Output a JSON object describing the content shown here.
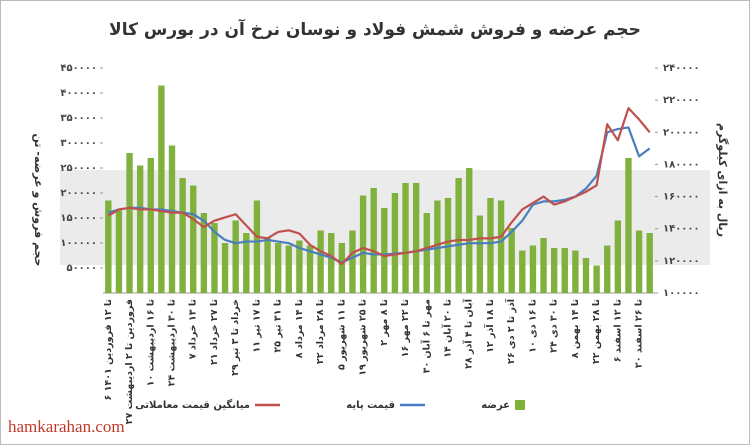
{
  "chart_data": {
    "type": "bar-line",
    "title": "حجم عرضه و فروش شمش فولاد و نوسان نرخ آن در بورس کالا",
    "y_label": "حجم فروش و عرضه- تن",
    "y2_label": "ریال به ازای کیلوگرم",
    "watermark": "hamkarahan.com",
    "categories": [
      "۶ تا ۱۲ فروردین ۱۴۰۱",
      null,
      "۲۷ فروردین تا ۲ اردیبهشت",
      null,
      "۱۰ تا ۱۶ اردیبهشت",
      null,
      "۲۴ تا ۳۰ اردیبهشت",
      null,
      "۷ تا ۱۳ خرداد",
      null,
      "۲۱ تا ۲۷ خرداد",
      null,
      "۲۹ خرداد تا ۳ تیر",
      null,
      "۱۱ تا ۱۷ تیر",
      null,
      "۲۵ تا ۳۱ تیر",
      null,
      "۸ تا ۱۴ مرداد",
      null,
      "۲۲ تا ۲۸ مرداد",
      null,
      "۵ تا ۱۱ شهریور",
      null,
      "۱۹ تا ۲۵ شهریور",
      null,
      "۲ تا ۸ مهر",
      null,
      "۱۶ تا ۲۲ مهر",
      null,
      "۳۰ مهر تا ۶ آبان",
      null,
      "۱۴ تا ۲۰ آبان",
      null,
      "۲۸ آبان تا ۴ آذر",
      null,
      "۱۲ تا ۱۸ آذر",
      null,
      "۲۶ آذر تا ۲ دی",
      null,
      "۱۰ تا ۱۶ دی",
      null,
      "۲۴ تا ۳۰ دی",
      null,
      "۸ تا ۱۴ بهمن",
      null,
      "۲۲ تا ۲۸ بهمن",
      null,
      "۶ تا ۱۲ اسفند",
      null,
      "۲۰ تا ۲۶ اسفند",
      null
    ],
    "series": [
      {
        "name": "عرضه",
        "type": "bar",
        "color": "#7fb13c",
        "values": [
          185000,
          165000,
          280000,
          255000,
          270000,
          415000,
          295000,
          230000,
          215000,
          160000,
          140000,
          100000,
          145000,
          120000,
          185000,
          110000,
          100000,
          95000,
          105000,
          95000,
          125000,
          120000,
          100000,
          125000,
          195000,
          210000,
          170000,
          200000,
          220000,
          220000,
          160000,
          185000,
          190000,
          230000,
          250000,
          155000,
          190000,
          185000,
          130000,
          85000,
          95000,
          110000,
          90000,
          90000,
          85000,
          70000,
          55000,
          95000,
          145000,
          270000,
          125000,
          120000
        ]
      },
      {
        "name": "قیمت پایه",
        "type": "line",
        "axis": "y2",
        "color": "#4a7ebf",
        "values": [
          150000,
          152000,
          153000,
          153000,
          152000,
          152000,
          151000,
          150000,
          149000,
          145000,
          138000,
          133000,
          131000,
          132000,
          132000,
          133000,
          132000,
          131000,
          128000,
          126000,
          124000,
          122000,
          119000,
          122000,
          125000,
          124000,
          124000,
          124500,
          125000,
          126000,
          127000,
          128000,
          129000,
          130000,
          131000,
          131000,
          131000,
          132000,
          138000,
          145000,
          155000,
          157000,
          157000,
          158000,
          160000,
          165000,
          173000,
          200000,
          202000,
          203000,
          185000,
          190000
        ]
      },
      {
        "name": "میانگین قیمت معاملاتی",
        "type": "line",
        "axis": "y2",
        "color": "#c0504d",
        "values": [
          148000,
          152000,
          153000,
          152000,
          152000,
          151000,
          150000,
          150000,
          146000,
          141000,
          145000,
          147000,
          149000,
          142000,
          135000,
          134000,
          138000,
          139000,
          137000,
          130000,
          126000,
          123000,
          118000,
          125000,
          128000,
          126000,
          123000,
          124000,
          125000,
          126000,
          128000,
          130000,
          132000,
          133000,
          133000,
          134000,
          134000,
          135000,
          144000,
          152000,
          156000,
          160000,
          155000,
          157000,
          160000,
          163000,
          167000,
          205000,
          195000,
          215000,
          208000,
          200000
        ]
      }
    ],
    "ylim": [
      0,
      450000
    ],
    "yticks": [
      {
        "value": 50000,
        "label": "۵۰۰۰۰"
      },
      {
        "value": 100000,
        "label": "۱۰۰۰۰۰"
      },
      {
        "value": 150000,
        "label": "۱۵۰۰۰۰"
      },
      {
        "value": 200000,
        "label": "۲۰۰۰۰۰"
      },
      {
        "value": 250000,
        "label": "۲۵۰۰۰۰"
      },
      {
        "value": 300000,
        "label": "۳۰۰۰۰۰"
      },
      {
        "value": 350000,
        "label": "۳۵۰۰۰۰"
      },
      {
        "value": 400000,
        "label": "۴۰۰۰۰۰"
      },
      {
        "value": 450000,
        "label": "۴۵۰۰۰۰"
      }
    ],
    "y2lim": [
      100000,
      240000
    ],
    "y2ticks": [
      {
        "value": 100000,
        "label": "۱۰۰۰۰۰"
      },
      {
        "value": 120000,
        "label": "۱۲۰۰۰۰"
      },
      {
        "value": 140000,
        "label": "۱۴۰۰۰۰"
      },
      {
        "value": 160000,
        "label": "۱۶۰۰۰۰"
      },
      {
        "value": 180000,
        "label": "۱۸۰۰۰۰"
      },
      {
        "value": 200000,
        "label": "۲۰۰۰۰۰"
      },
      {
        "value": 220000,
        "label": "۲۲۰۰۰۰"
      },
      {
        "value": 240000,
        "label": "۲۴۰۰۰۰"
      }
    ],
    "legend": "bottom"
  }
}
